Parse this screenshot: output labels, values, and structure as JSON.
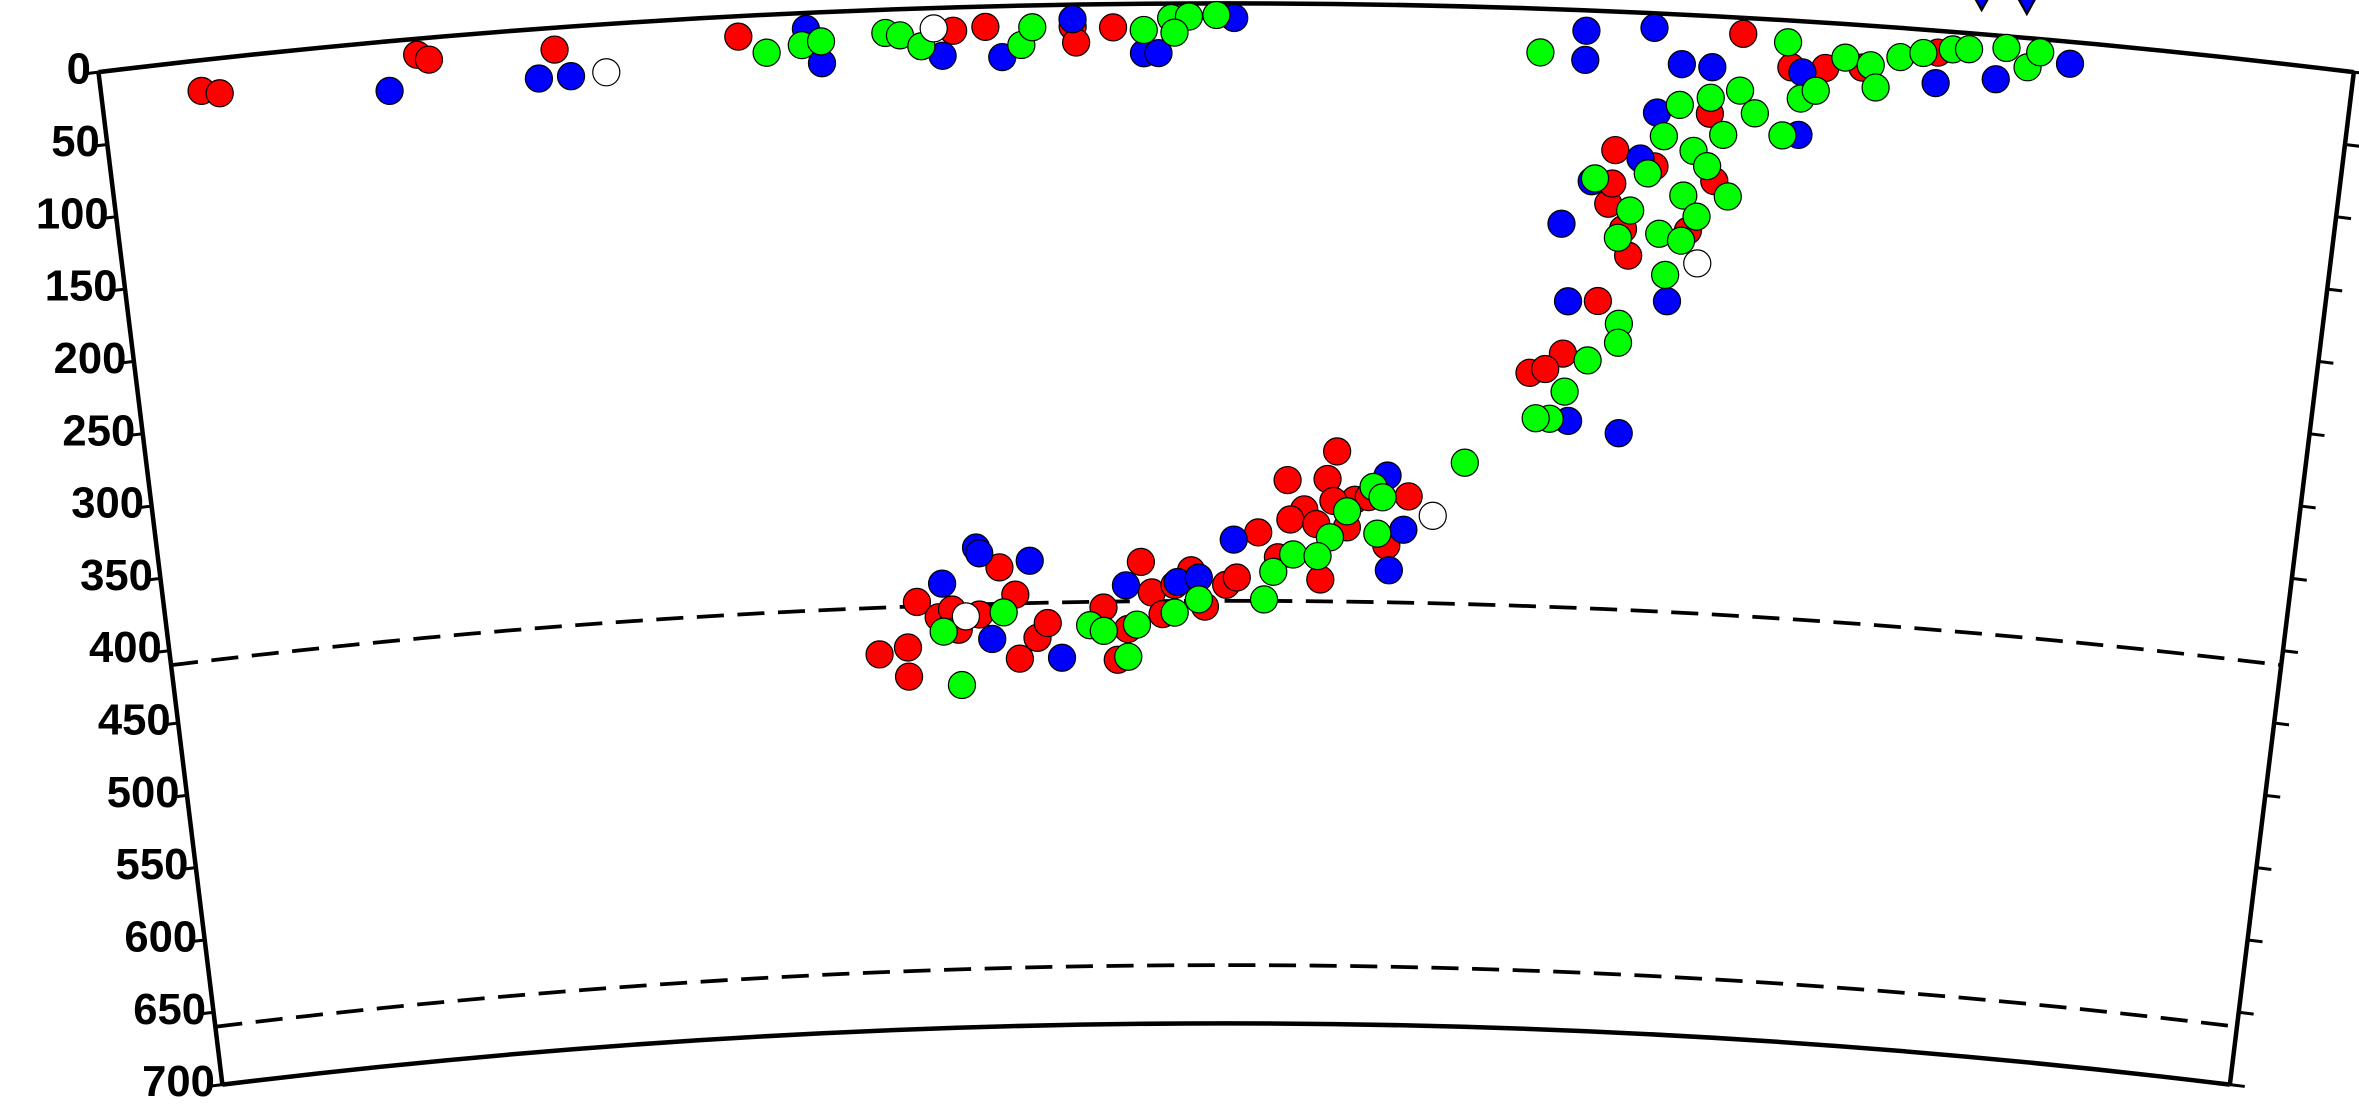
{
  "chart_data": {
    "type": "scatter",
    "xlim": [
      0,
      13.96
    ],
    "ylim": [
      0,
      700
    ],
    "yticks": [
      0,
      50,
      100,
      150,
      200,
      250,
      300,
      350,
      400,
      450,
      500,
      550,
      600,
      650,
      700
    ],
    "y_inverted": true,
    "reference_depths": [
      410,
      660
    ],
    "series": [
      {
        "color": "#ff0000",
        "x": [
          0.62,
          0.73,
          1.97,
          2.04,
          2.82,
          3.96,
          5.49,
          5.29,
          6.03,
          6.05,
          6.28,
          10.18,
          10.49,
          10.7,
          9.42,
          9.39,
          9.41,
          9.49,
          9.53,
          9.35,
          9.14,
          8.93,
          9.03,
          10.05,
          10.0,
          9.9,
          9.67,
          10.93,
          11.39,
          4.68,
          4.87,
          4.87,
          4.94,
          5.08,
          5.17,
          5.35,
          5.49,
          5.61,
          5.73,
          5.8,
          5.59,
          5.21,
          6.17,
          6.26,
          6.33,
          6.42,
          6.49,
          6.56,
          6.64,
          6.84,
          6.75,
          6.98,
          7.05,
          7.19,
          7.32,
          7.38,
          7.49,
          7.6,
          7.7,
          7.64,
          7.4,
          7.82,
          7.57,
          7.77,
          7.91,
          8.03,
          8.17,
          7.68
        ],
        "values": [
          21,
          24,
          11,
          15,
          15,
          14,
          14,
          16,
          15,
          26,
          16,
          11,
          32,
          31,
          95,
          132,
          118,
          149,
          167,
          199,
          236,
          250,
          247,
          113,
          67,
          148,
          105,
          29,
          15,
          442,
          458,
          438,
          407,
          418,
          413,
          417,
          385,
          448,
          434,
          424,
          404,
          427,
          414,
          450,
          429,
          383,
          404,
          419,
          399,
          414,
          389,
          399,
          394,
          363,
          380,
          327,
          347,
          395,
          307,
          326,
          354,
          340,
          357,
          359,
          338,
          371,
          337,
          341
        ]
      },
      {
        "color": "#0000ff",
        "x": [
          1.78,
          2.71,
          2.91,
          4.47,
          4.38,
          5.22,
          5.59,
          6.03,
          6.47,
          6.56,
          7.03,
          9.21,
          9.21,
          9.63,
          9.81,
          10.0,
          9.67,
          9.58,
          9.1,
          9.28,
          9.16,
          9.52,
          9.19,
          9.79,
          11.76,
          12.21,
          11.39,
          10.56,
          10.56,
          5.11,
          5.34,
          5.36,
          5.43,
          5.69,
          5.89,
          6.32,
          6.66,
          6.8,
          7.03,
          8.03,
          8.14,
          8.05
        ],
        "values": [
          34,
          34,
          34,
          35,
          11,
          33,
          35,
          10,
          34,
          34,
          10,
          14,
          34,
          10,
          34,
          35,
          68,
          100,
          147,
          117,
          200,
          289,
          282,
          197,
          30,
          15,
          36,
          35,
          78,
          395,
          371,
          375,
          434,
          381,
          448,
          399,
          397,
          394,
          368,
          323,
          360,
          388
        ]
      },
      {
        "color": "#00ff00",
        "x": [
          4.13,
          4.35,
          4.47,
          4.87,
          4.96,
          5.09,
          5.71,
          5.78,
          6.47,
          6.64,
          6.75,
          6.92,
          6.66,
          8.93,
          10.46,
          9.3,
          9.46,
          9.53,
          9.63,
          9.72,
          9.81,
          10.0,
          9.91,
          9.86,
          10.0,
          10.09,
          10.18,
          10.28,
          10.46,
          10.56,
          10.14,
          9.49,
          9.49,
          9.3,
          9.16,
          9.07,
          8.98,
          9.77,
          9.72,
          9.86,
          9.95,
          10.82,
          10.98,
          11.02,
          11.16,
          11.3,
          11.48,
          11.58,
          11.81,
          11.95,
          12.02,
          10.65,
          8.53,
          5.11,
          5.22,
          5.51,
          6.08,
          6.17,
          6.33,
          6.39,
          6.64,
          6.8,
          7.23,
          7.29,
          7.42,
          7.66,
          7.77,
          7.94,
          7.97,
          8.0,
          7.58
        ],
        "values": [
          26,
          22,
          20,
          16,
          18,
          26,
          27,
          15,
          18,
          10,
          9,
          8,
          20,
          30,
          15,
          115,
          155,
          136,
          110,
          84,
          62,
          56,
          93,
          124,
          103,
          81,
          50,
          65,
          79,
          53,
          123,
          214,
          227,
          240,
          262,
          281,
          281,
          179,
          151,
          155,
          138,
          23,
          27,
          42,
          20,
          16,
          12,
          11,
          8,
          20,
          9,
          47,
          313,
          428,
          465,
          416,
          426,
          430,
          448,
          426,
          418,
          409,
          409,
          390,
          378,
          366,
          348,
          331,
          363,
          338,
          379
        ]
      },
      {
        "color": "#ffffff",
        "x": [
          3.13,
          5.17,
          9.97,
          8.33,
          5.26
        ],
        "values": [
          33,
          14,
          170,
          350,
          418
        ]
      }
    ],
    "stations": {
      "color": "#0000ff",
      "x": [
        11.65,
        11.93
      ],
      "values": [
        0,
        0
      ]
    }
  }
}
